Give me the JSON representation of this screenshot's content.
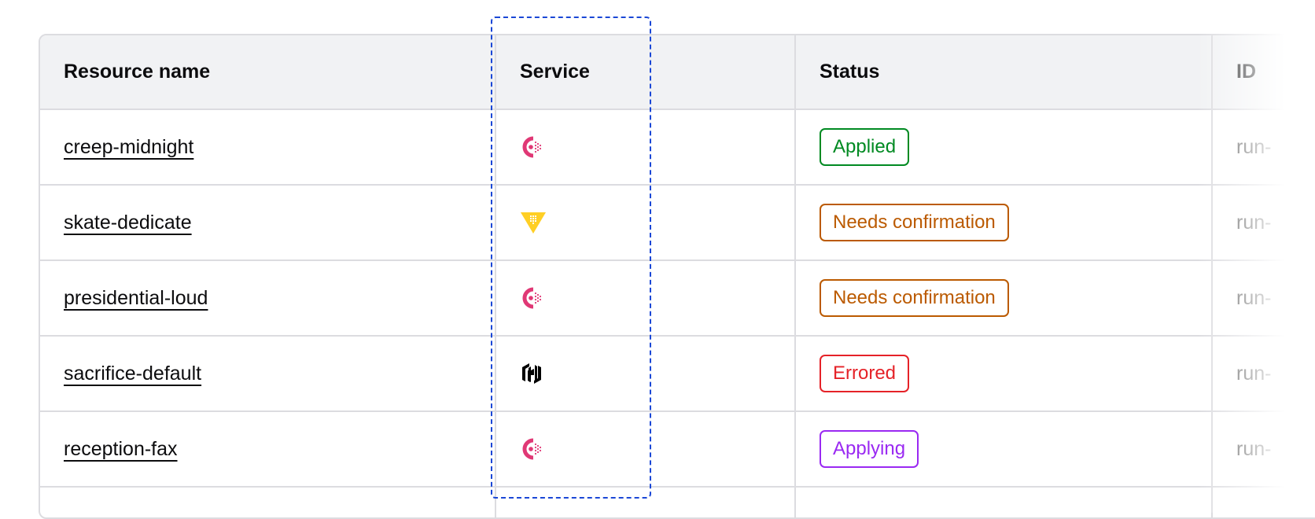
{
  "columns": [
    "Resource name",
    "Service",
    "Status",
    "ID"
  ],
  "rows": [
    {
      "name": "creep-midnight",
      "service": "consul",
      "status": "Applied",
      "id": "run-"
    },
    {
      "name": "skate-dedicate",
      "service": "vault",
      "status": "Needs confirmation",
      "id": "run-"
    },
    {
      "name": "presidential-loud",
      "service": "consul",
      "status": "Needs confirmation",
      "id": "run-"
    },
    {
      "name": "sacrifice-default",
      "service": "hashicorp",
      "status": "Errored",
      "id": "run-"
    },
    {
      "name": "reception-fax",
      "service": "consul",
      "status": "Applying",
      "id": "run-"
    }
  ],
  "status_colors": {
    "Applied": "#008a22",
    "Needs confirmation": "#bb5a00",
    "Errored": "#e52228",
    "Applying": "#9a29f2"
  },
  "service_icons": {
    "consul": "consul-icon",
    "vault": "vault-icon",
    "hashicorp": "hashicorp-icon"
  }
}
